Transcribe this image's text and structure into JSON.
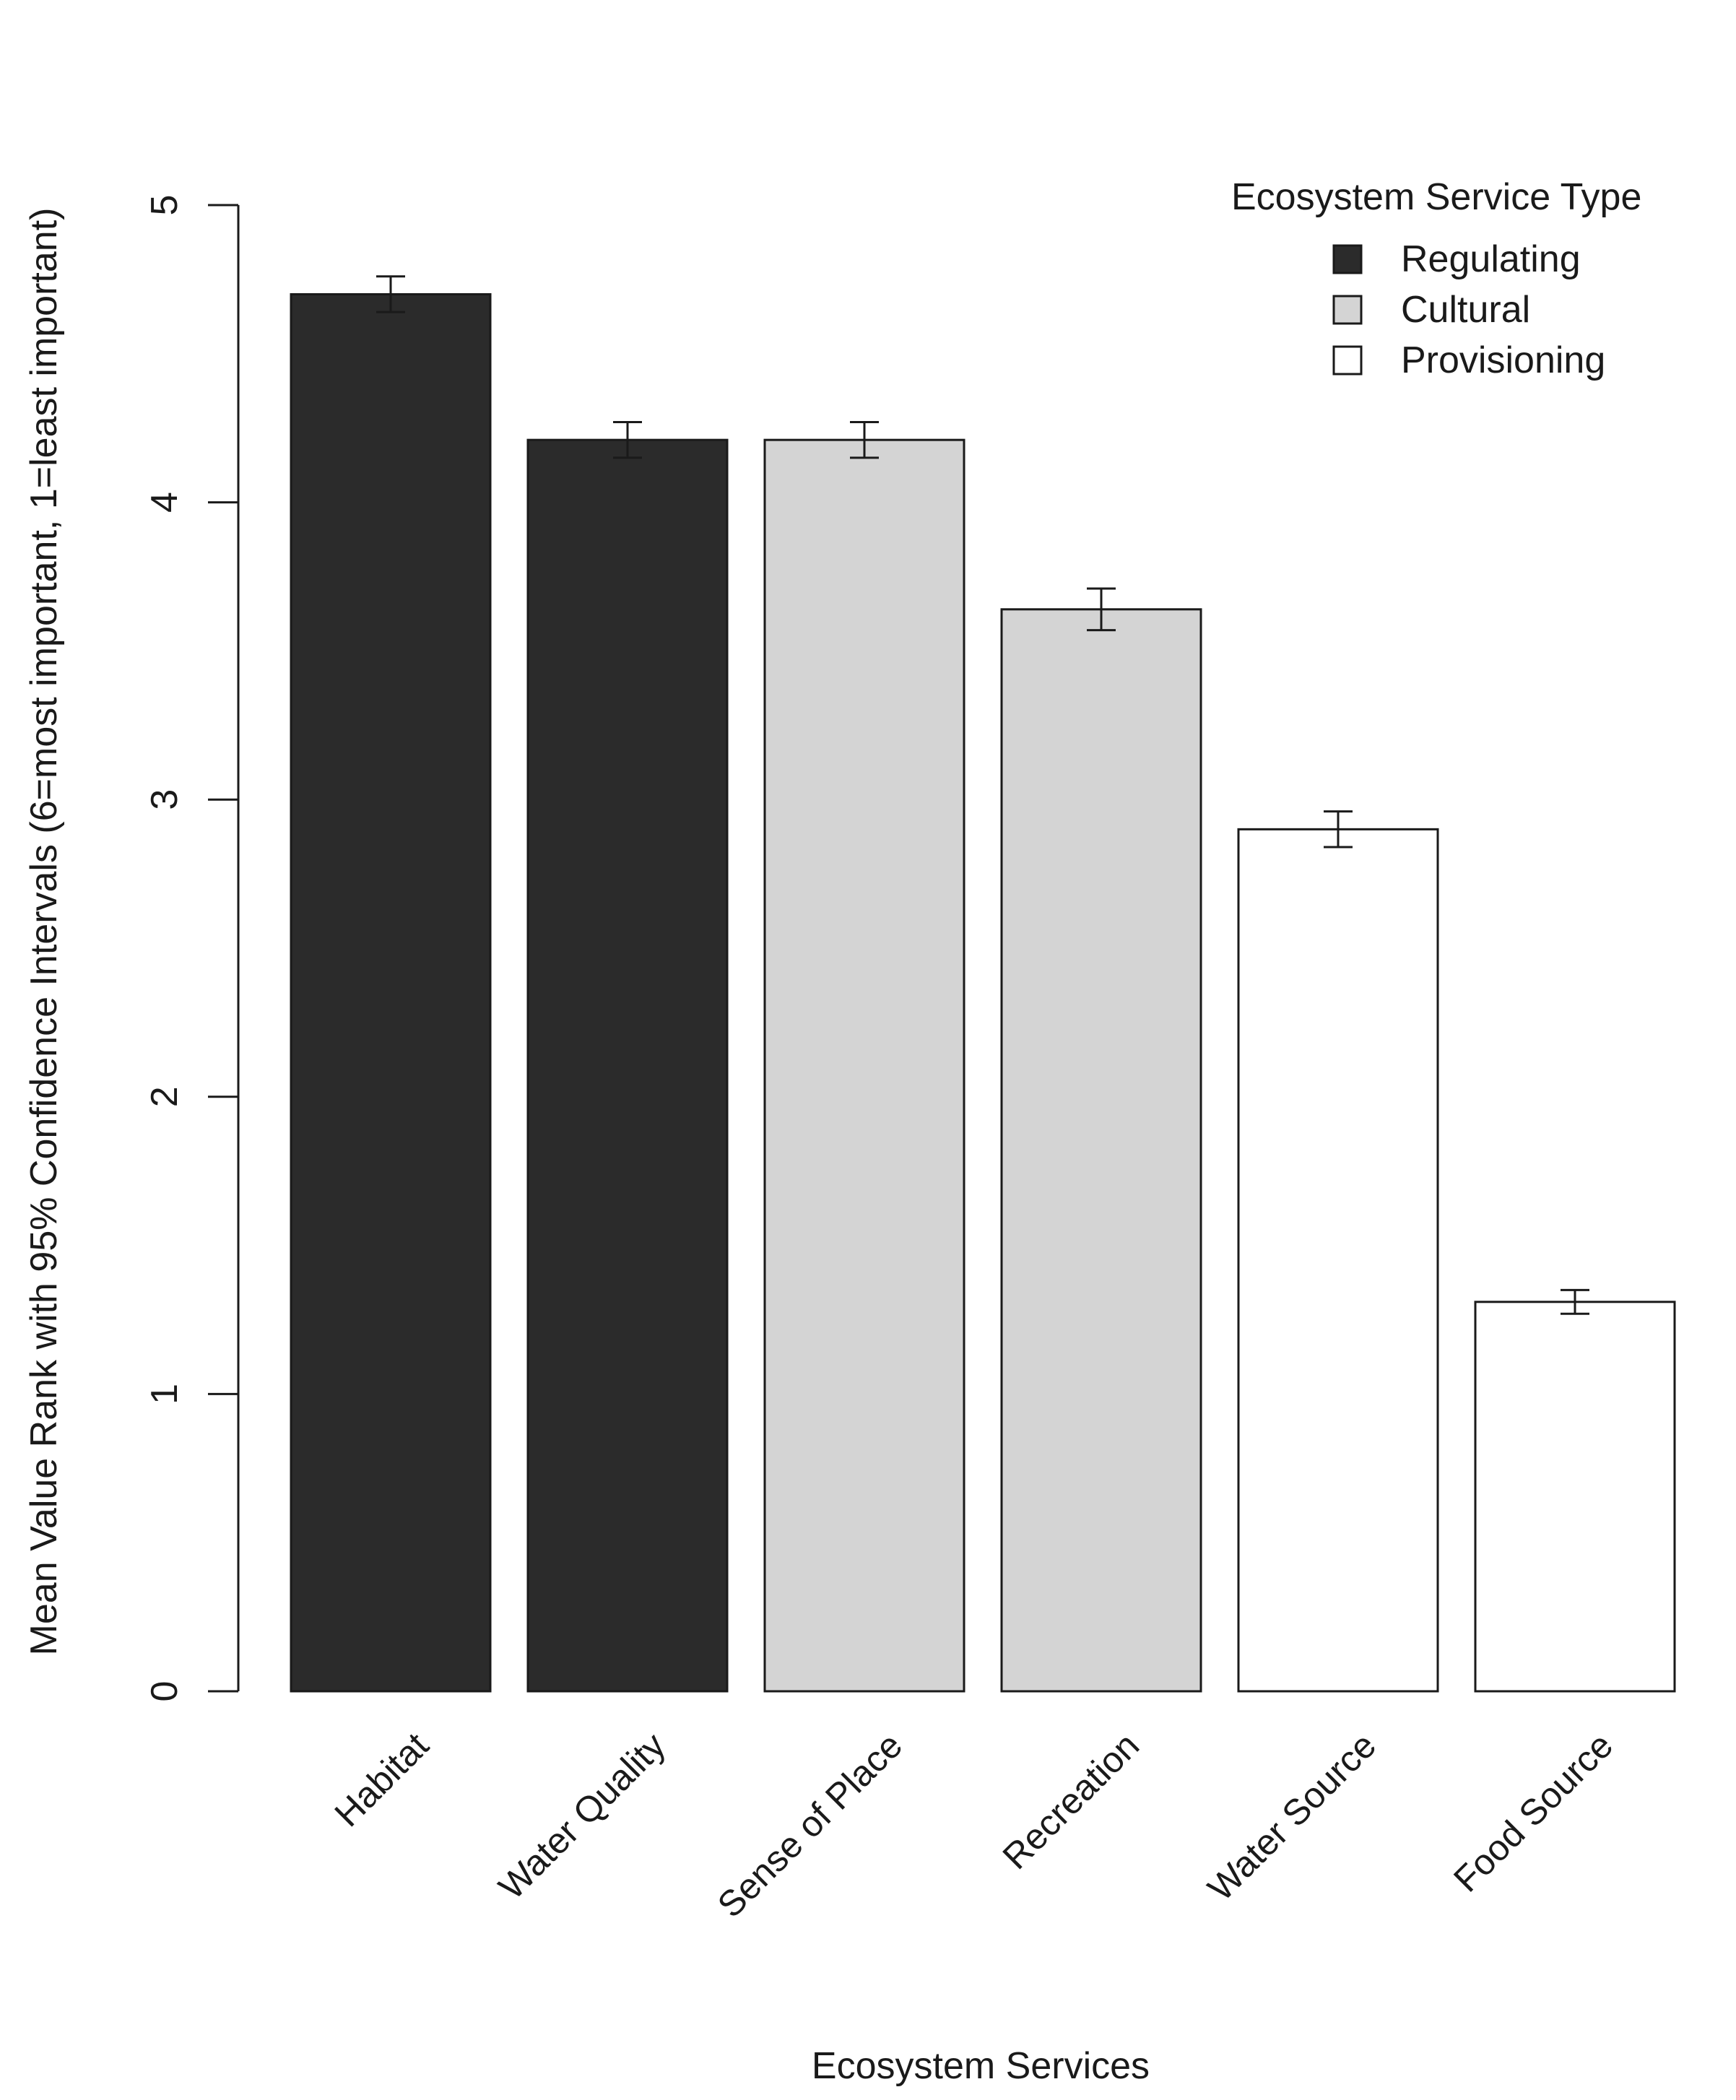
{
  "chart_data": {
    "type": "bar",
    "title": "",
    "xlabel": "Ecosystem Services",
    "ylabel": "Mean Value Rank with 95% Confidence Intervals (6=most important, 1=least important)",
    "ylim": [
      0,
      5
    ],
    "yticks": [
      0,
      1,
      2,
      3,
      4,
      5
    ],
    "categories": [
      "Habitat",
      "Water Quality",
      "Sense of Place",
      "Recreation",
      "Water Source",
      "Food Source"
    ],
    "values": [
      4.7,
      4.21,
      4.21,
      3.64,
      2.9,
      1.31
    ],
    "ci_low": [
      4.64,
      4.15,
      4.15,
      3.57,
      2.84,
      1.27
    ],
    "ci_high": [
      4.76,
      4.27,
      4.27,
      3.71,
      2.96,
      1.35
    ],
    "types": [
      "Regulating",
      "Regulating",
      "Cultural",
      "Cultural",
      "Provisioning",
      "Provisioning"
    ],
    "grid": false,
    "legend": {
      "title": "Ecosystem Service Type",
      "placement": "top-right",
      "entries": [
        {
          "label": "Regulating",
          "color": "#2b2b2b"
        },
        {
          "label": "Cultural",
          "color": "#d4d4d4"
        },
        {
          "label": "Provisioning",
          "color": "#ffffff"
        }
      ]
    }
  }
}
